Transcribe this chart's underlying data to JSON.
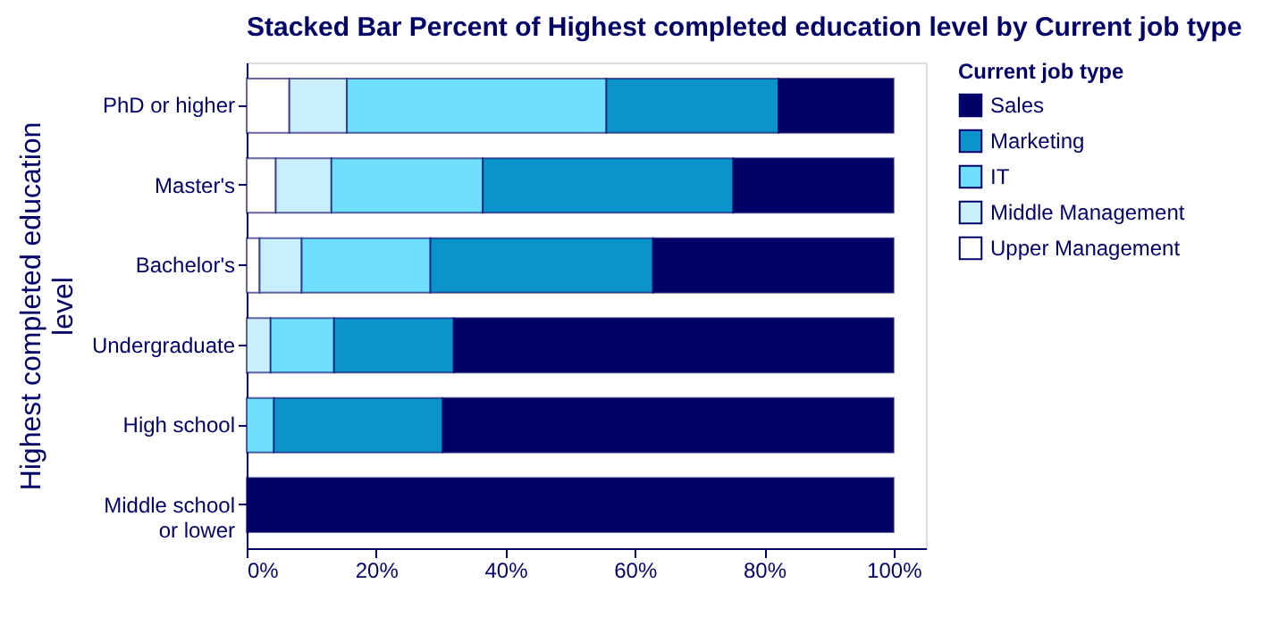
{
  "chart_data": {
    "type": "bar",
    "orientation": "horizontal",
    "stacked": true,
    "title": "Stacked Bar Percent of Highest completed education level by Current job type",
    "ylabel": "Highest completed education level",
    "legend_title": "Current job type",
    "categories": [
      "PhD or higher",
      "Master's",
      "Bachelor's",
      "Undergraduate",
      "High school",
      "Middle school or lower"
    ],
    "series": [
      {
        "name": "Upper Management",
        "color": "#ffffff",
        "values": [
          6.6,
          4.5,
          2.0,
          null,
          null,
          null
        ]
      },
      {
        "name": "Middle Management",
        "color": "#c9efff",
        "values": [
          8.9,
          8.6,
          6.5,
          3.7,
          null,
          null
        ]
      },
      {
        "name": "IT",
        "color": "#70dfff",
        "values": [
          40.1,
          23.4,
          19.9,
          9.8,
          4.2,
          null
        ]
      },
      {
        "name": "Marketing",
        "color": "#0b93cb",
        "values": [
          26.6,
          38.7,
          34.4,
          18.5,
          26.1,
          null
        ]
      },
      {
        "name": "Sales",
        "color": "#000066",
        "values": [
          17.8,
          24.8,
          37.2,
          68.0,
          69.7,
          100
        ]
      }
    ],
    "xlim": [
      0,
      105
    ],
    "xticks": [
      {
        "value": 0,
        "label": "0%"
      },
      {
        "value": 20,
        "label": "20%"
      },
      {
        "value": 40,
        "label": "40%"
      },
      {
        "value": 60,
        "label": "60%"
      },
      {
        "value": 80,
        "label": "80%"
      },
      {
        "value": 100,
        "label": "100%"
      }
    ],
    "grid": false,
    "legend": "top right"
  }
}
